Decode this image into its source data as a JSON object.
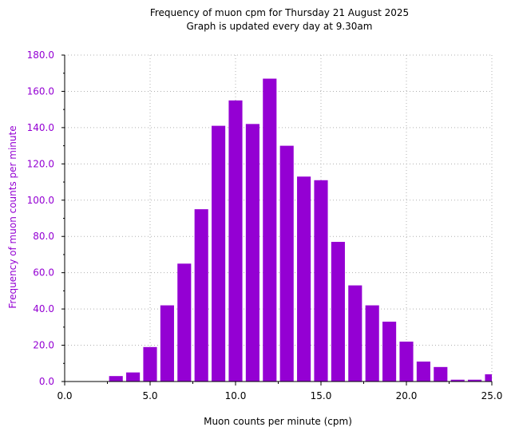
{
  "chart_data": {
    "type": "bar",
    "title": "Frequency of muon cpm for Thursday 21 August 2025",
    "subtitle": "Graph is updated every day at 9.30am",
    "xlabel": "Muon counts per minute (cpm)",
    "ylabel": "Frequency of muon counts per minute",
    "xlim": [
      0,
      25
    ],
    "ylim": [
      0,
      180
    ],
    "x_ticks": [
      "0.0",
      "5.0",
      "10.0",
      "15.0",
      "20.0",
      "25.0"
    ],
    "y_ticks": [
      "0.0",
      "20.0",
      "40.0",
      "60.0",
      "80.0",
      "100.0",
      "120.0",
      "140.0",
      "160.0",
      "180.0"
    ],
    "x": [
      2,
      3,
      4,
      5,
      6,
      7,
      8,
      9,
      10,
      11,
      12,
      13,
      14,
      15,
      16,
      17,
      18,
      19,
      20,
      21,
      22,
      23,
      24,
      25
    ],
    "values": [
      0,
      3,
      5,
      19,
      42,
      65,
      95,
      141,
      155,
      142,
      167,
      130,
      113,
      111,
      77,
      53,
      42,
      33,
      22,
      11,
      8,
      1,
      1,
      4
    ],
    "grid": true,
    "colors": {
      "bar": "#9400d3",
      "ylabel_color": "#9400d3",
      "grid": "#b0b0b0"
    }
  }
}
